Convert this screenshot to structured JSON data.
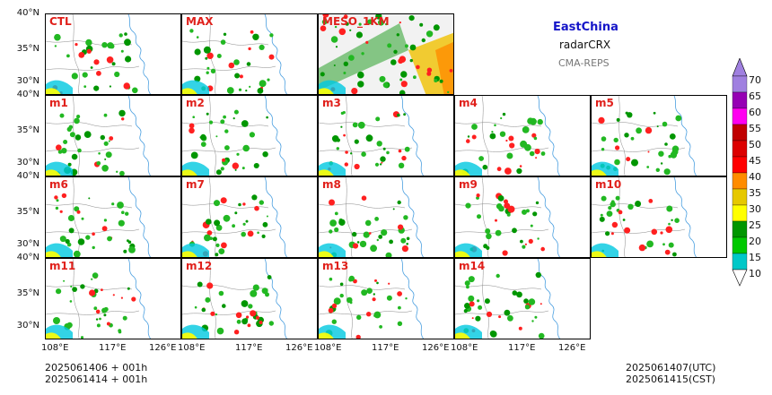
{
  "header": {
    "region": "EastChina",
    "variable": "radarCRX",
    "system": "CMA-REPS"
  },
  "panels": [
    {
      "label": "CTL"
    },
    {
      "label": "MAX"
    },
    {
      "label": "MESO_1KM"
    },
    {
      "label": "m1"
    },
    {
      "label": "m2"
    },
    {
      "label": "m3"
    },
    {
      "label": "m4"
    },
    {
      "label": "m5"
    },
    {
      "label": "m6"
    },
    {
      "label": "m7"
    },
    {
      "label": "m8"
    },
    {
      "label": "m9"
    },
    {
      "label": "m10"
    },
    {
      "label": "m11"
    },
    {
      "label": "m12"
    },
    {
      "label": "m13"
    },
    {
      "label": "m14"
    }
  ],
  "axes": {
    "lat_ticks": [
      "40°N",
      "35°N",
      "30°N"
    ],
    "lon_ticks": [
      "108°E",
      "117°E",
      "126°E"
    ]
  },
  "footer": {
    "init_utc": "2025061406  +  001h",
    "init_cst": "2025061414  +  001h",
    "valid_utc": "2025061407(UTC)",
    "valid_cst": "2025061415(CST)"
  },
  "colorbar": {
    "levels": [
      "10",
      "15",
      "20",
      "25",
      "30",
      "35",
      "40",
      "45",
      "50",
      "55",
      "60",
      "65",
      "70"
    ],
    "colors": [
      "#1e90ff",
      "#00c8c8",
      "#00c800",
      "#009600",
      "#ffff00",
      "#e6c800",
      "#ff8c00",
      "#ff0000",
      "#dc0000",
      "#c00000",
      "#ff00f0",
      "#9600b4",
      "#a080e0"
    ]
  }
}
